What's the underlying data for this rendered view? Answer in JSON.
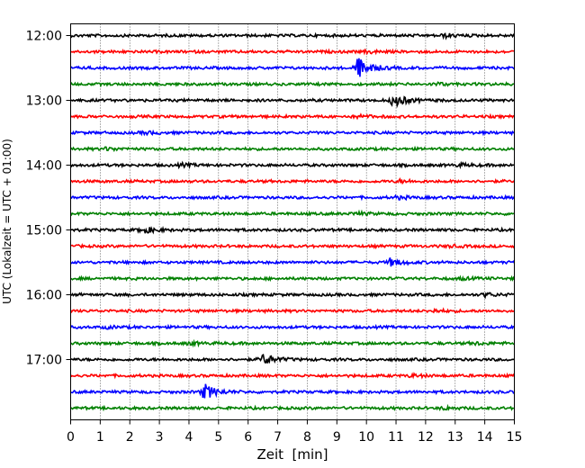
{
  "chart_data": {
    "type": "line",
    "subtype": "helicorder",
    "xlabel": "Zeit  [min]",
    "ylabel": "UTC (Lokalzeit = UTC + 01:00)",
    "xlim": [
      0,
      15
    ],
    "x_ticks": [
      "0",
      "1",
      "2",
      "3",
      "4",
      "5",
      "6",
      "7",
      "8",
      "9",
      "10",
      "11",
      "12",
      "13",
      "14",
      "15"
    ],
    "y_ticks": [
      "12:00",
      "13:00",
      "14:00",
      "15:00",
      "16:00",
      "17:00"
    ],
    "vertical_grid": "dotted",
    "trace_colors": [
      "#000000",
      "#ff0000",
      "#0000ff",
      "#008000"
    ],
    "traces": [
      {
        "start": "12:00",
        "events": [
          {
            "t": 12.6,
            "amp": 2
          }
        ]
      },
      {
        "start": "12:15",
        "events": [
          {
            "t": 10.0,
            "amp": 1.5
          }
        ]
      },
      {
        "start": "12:30",
        "events": [
          {
            "t": 9.7,
            "amp": 12
          }
        ]
      },
      {
        "start": "12:45",
        "events": [
          {
            "t": 12.3,
            "amp": 1.5
          }
        ]
      },
      {
        "start": "13:00",
        "events": [
          {
            "t": 10.9,
            "amp": 8
          }
        ]
      },
      {
        "start": "13:15",
        "events": [
          {
            "t": 9.7,
            "amp": 1.5
          }
        ]
      },
      {
        "start": "13:30",
        "events": [
          {
            "t": 2.5,
            "amp": 1.5
          }
        ]
      },
      {
        "start": "13:45",
        "events": [
          {
            "t": 1.2,
            "amp": 1.5
          }
        ]
      },
      {
        "start": "14:00",
        "events": [
          {
            "t": 3.7,
            "amp": 1.5
          },
          {
            "t": 13.1,
            "amp": 1.5
          }
        ]
      },
      {
        "start": "14:15",
        "events": [
          {
            "t": 11.1,
            "amp": 1.5
          }
        ]
      },
      {
        "start": "14:30",
        "events": [
          {
            "t": 11.0,
            "amp": 1.5
          }
        ]
      },
      {
        "start": "14:45",
        "events": [
          {
            "t": 9.6,
            "amp": 1.5
          }
        ]
      },
      {
        "start": "15:00",
        "events": [
          {
            "t": 2.4,
            "amp": 4
          }
        ]
      },
      {
        "start": "15:15",
        "events": [
          {
            "t": 12.8,
            "amp": 1
          }
        ]
      },
      {
        "start": "15:30",
        "events": [
          {
            "t": 10.8,
            "amp": 4
          }
        ]
      },
      {
        "start": "15:45",
        "events": [
          {
            "t": 13.2,
            "amp": 1
          }
        ]
      },
      {
        "start": "16:00",
        "events": [
          {
            "t": 14.0,
            "amp": 2
          }
        ]
      },
      {
        "start": "16:15",
        "events": [
          {
            "t": 12.2,
            "amp": 1.5
          }
        ]
      },
      {
        "start": "16:30",
        "events": [
          {
            "t": 1.2,
            "amp": 1
          }
        ]
      },
      {
        "start": "16:45",
        "events": [
          {
            "t": 4.0,
            "amp": 1.5
          },
          {
            "t": 13.6,
            "amp": 1.5
          }
        ]
      },
      {
        "start": "17:00",
        "events": [
          {
            "t": 6.5,
            "amp": 6
          }
        ]
      },
      {
        "start": "17:15",
        "events": [
          {
            "t": 11.5,
            "amp": 1.5
          }
        ]
      },
      {
        "start": "17:30",
        "events": [
          {
            "t": 4.5,
            "amp": 9
          }
        ]
      },
      {
        "start": "17:45",
        "events": [
          {
            "t": 12.6,
            "amp": 1.5
          }
        ]
      }
    ]
  }
}
